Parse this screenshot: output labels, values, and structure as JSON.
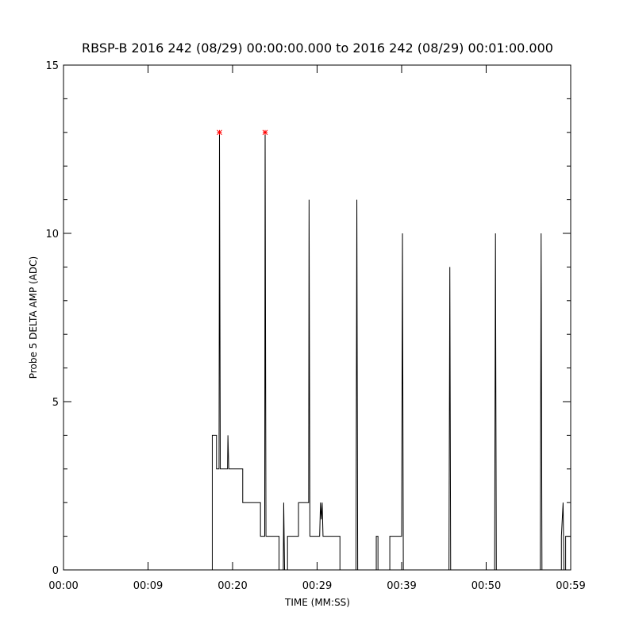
{
  "chart_data": {
    "type": "line",
    "title": "RBSP-B 2016 242 (08/29) 00:00:00.000 to 2016 242 (08/29) 00:01:00.000",
    "xlabel": "TIME (MM:SS)",
    "ylabel": "Probe 5 DELTA AMP (ADC)",
    "xlim": [
      0,
      60
    ],
    "ylim": [
      0,
      15
    ],
    "xticks": [
      {
        "value": 0,
        "label": "00:00"
      },
      {
        "value": 10,
        "label": "00:09"
      },
      {
        "value": 20,
        "label": "00:20"
      },
      {
        "value": 30,
        "label": "00:29"
      },
      {
        "value": 40,
        "label": "00:39"
      },
      {
        "value": 50,
        "label": "00:50"
      },
      {
        "value": 60,
        "label": "00:59"
      }
    ],
    "yticks": [
      0,
      5,
      10,
      15
    ],
    "yminorticks": [
      1,
      2,
      3,
      4,
      6,
      7,
      8,
      9,
      11,
      12,
      13,
      14
    ],
    "series": [
      {
        "color": "#000000",
        "x": [
          0,
          17.6,
          17.6,
          18.1,
          18.1,
          18.4,
          18.45,
          18.55,
          19.4,
          19.45,
          19.55,
          21.2,
          21.2,
          23.3,
          23.3,
          23.8,
          23.85,
          23.95,
          25.5,
          25.5,
          26.0,
          26.05,
          26.15,
          26.5,
          26.5,
          27.8,
          27.8,
          29.0,
          29.05,
          29.15,
          29.25,
          30.3,
          30.4,
          30.5,
          30.6,
          30.7,
          30.8,
          32.7,
          32.7,
          34.6,
          34.7,
          34.8,
          37.0,
          37.0,
          37.2,
          37.2,
          38.6,
          38.6,
          40.0,
          40.1,
          40.2,
          45.6,
          45.7,
          45.8,
          51.0,
          51.1,
          51.2,
          56.4,
          56.5,
          56.6,
          58.9,
          58.9,
          59.1,
          59.2,
          59.4,
          59.4,
          60
        ],
        "values": [
          0,
          0,
          4,
          4,
          3,
          3,
          13,
          3,
          3,
          4,
          3,
          3,
          2,
          2,
          1,
          1,
          13,
          1,
          1,
          0,
          0,
          2,
          0,
          0,
          1,
          1,
          2,
          2,
          11,
          1,
          1,
          1,
          2,
          1.5,
          2,
          1,
          1,
          1,
          0,
          0,
          11,
          0,
          0,
          1,
          1,
          0,
          0,
          1,
          1,
          10,
          0,
          0,
          9,
          0,
          0,
          10,
          0,
          0,
          10,
          0,
          0,
          1,
          2,
          0,
          0,
          1,
          1
        ]
      },
      {
        "color": "#ff0000",
        "marker": "*",
        "x": [
          18.45,
          23.85
        ],
        "values": [
          13,
          13
        ]
      }
    ]
  }
}
